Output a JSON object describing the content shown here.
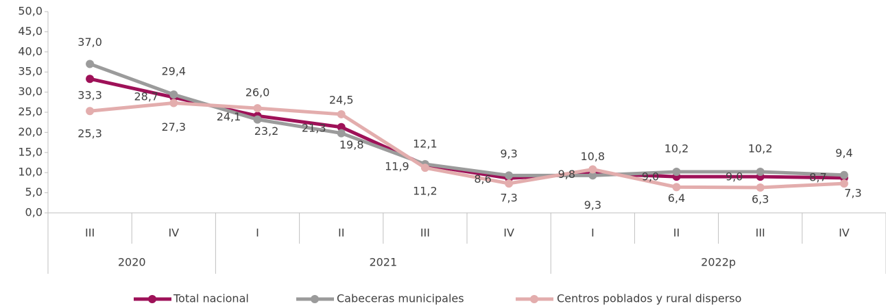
{
  "chart_data": {
    "type": "line",
    "categories": [
      "III",
      "IV",
      "I",
      "II",
      "III",
      "IV",
      "I",
      "II",
      "III",
      "IV"
    ],
    "group_categories": [
      "2020",
      null,
      "2021",
      null,
      null,
      null,
      "2022p",
      null,
      null,
      null
    ],
    "series": [
      {
        "name": "Total nacional",
        "color": "#9e1158",
        "values": [
          33.3,
          28.7,
          24.1,
          21.3,
          11.9,
          8.6,
          9.8,
          9.0,
          9.0,
          8.7
        ],
        "value_labels": [
          "33,3",
          "28,7",
          "24,1",
          "21,3",
          "11,9",
          "8,6",
          "9,8",
          "9,0",
          "9,0",
          "8,7"
        ]
      },
      {
        "name": "Cabeceras municipales",
        "color": "#9b9b9b",
        "values": [
          37.0,
          29.4,
          23.2,
          19.8,
          12.1,
          9.3,
          9.3,
          10.2,
          10.2,
          9.4
        ],
        "value_labels": [
          "37,0",
          "29,4",
          "23,2",
          "19,8",
          "12,1",
          "9,3",
          "9,3",
          "10,2",
          "10,2",
          "9,4"
        ]
      },
      {
        "name": "Centros poblados y rural disperso",
        "color": "#e3adad",
        "values": [
          25.3,
          27.3,
          26.0,
          24.5,
          11.2,
          7.3,
          10.8,
          6.4,
          6.3,
          7.3
        ],
        "value_labels": [
          "25,3",
          "27,3",
          "26,0",
          "24,5",
          "11,2",
          "7,3",
          "10,8",
          "6,4",
          "6,3",
          "7,3"
        ]
      }
    ],
    "ylim": [
      0,
      50
    ],
    "yticks": [
      {
        "value": 0,
        "label": "0,0"
      },
      {
        "value": 5,
        "label": "5,0"
      },
      {
        "value": 10,
        "label": "10,0"
      },
      {
        "value": 15,
        "label": "15,0"
      },
      {
        "value": 20,
        "label": "20,0"
      },
      {
        "value": 25,
        "label": "25,0"
      },
      {
        "value": 30,
        "label": "30,0"
      },
      {
        "value": 35,
        "label": "35,0"
      },
      {
        "value": 40,
        "label": "40,0"
      },
      {
        "value": 45,
        "label": "45,0"
      },
      {
        "value": 50,
        "label": "50,0"
      }
    ],
    "grid": false,
    "legend": "bottom"
  }
}
